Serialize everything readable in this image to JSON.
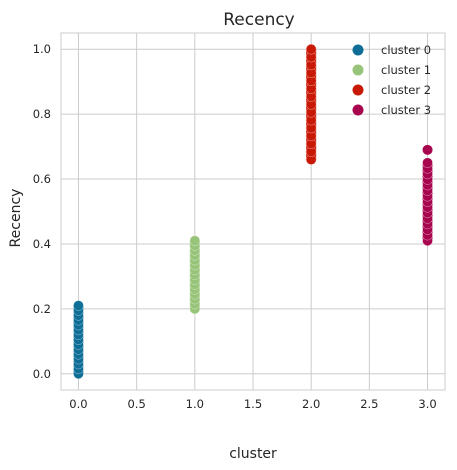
{
  "chart_data": {
    "type": "scatter",
    "title": "Recency",
    "xlabel": "cluster",
    "ylabel": "Recency",
    "xlim": [
      -0.15,
      3.15
    ],
    "ylim": [
      -0.05,
      1.05
    ],
    "xticks": [
      "0.0",
      "0.5",
      "1.0",
      "1.5",
      "2.0",
      "2.5",
      "3.0"
    ],
    "yticks": [
      "0.0",
      "0.2",
      "0.4",
      "0.6",
      "0.8",
      "1.0"
    ],
    "grid": true,
    "legend_position": "top-right",
    "series": [
      {
        "name": "cluster 0",
        "color": "#0e6e96",
        "x": 0,
        "y_min": 0.0,
        "y_max": 0.21,
        "outliers": []
      },
      {
        "name": "cluster 1",
        "color": "#98c47a",
        "x": 1,
        "y_min": 0.2,
        "y_max": 0.41,
        "outliers": []
      },
      {
        "name": "cluster 2",
        "color": "#c81806",
        "x": 2,
        "y_min": 0.66,
        "y_max": 1.0,
        "outliers": []
      },
      {
        "name": "cluster 3",
        "color": "#a8054f",
        "x": 3,
        "y_min": 0.41,
        "y_max": 0.65,
        "outliers": [
          0.69
        ]
      }
    ]
  }
}
